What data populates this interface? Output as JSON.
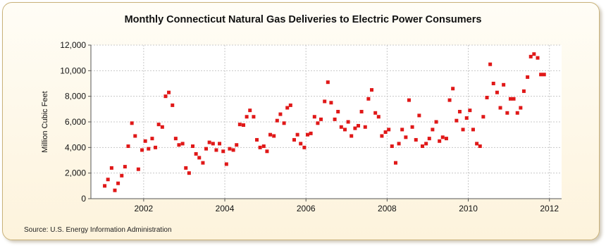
{
  "title": "Monthly Connecticut Natural Gas Deliveries to Electric Power Consumers",
  "source": "Source: U.S. Energy Information Administration",
  "chart_data": {
    "type": "scatter",
    "title": "Monthly Connecticut Natural Gas Deliveries to Electric Power Consumers",
    "xlabel": "",
    "ylabel": "Million Cubic Feet",
    "xlim": [
      2000.7,
      2012.3
    ],
    "ylim": [
      0,
      12000
    ],
    "x_ticks": [
      2002,
      2004,
      2006,
      2008,
      2010,
      2012
    ],
    "x_tick_labels": [
      "2002",
      "2004",
      "2006",
      "2008",
      "2010",
      "2012"
    ],
    "y_ticks": [
      0,
      2000,
      4000,
      6000,
      8000,
      10000,
      12000
    ],
    "y_tick_labels": [
      "0",
      "2,000",
      "4,000",
      "6,000",
      "8,000",
      "10,000",
      "12,000"
    ],
    "grid": true,
    "marker_color": "#e01818",
    "series": [
      {
        "x": [
          2001.04,
          2001.12,
          2001.21,
          2001.29,
          2001.37,
          2001.46,
          2001.54,
          2001.62,
          2001.71,
          2001.79,
          2001.87,
          2001.96,
          2002.04,
          2002.12,
          2002.21,
          2002.29,
          2002.37,
          2002.46,
          2002.54,
          2002.62,
          2002.71,
          2002.79,
          2002.87,
          2002.96,
          2003.04,
          2003.12,
          2003.21,
          2003.29,
          2003.37,
          2003.46,
          2003.54,
          2003.62,
          2003.71,
          2003.79,
          2003.87,
          2003.96,
          2004.04,
          2004.12,
          2004.21,
          2004.29,
          2004.37,
          2004.46,
          2004.54,
          2004.62,
          2004.71,
          2004.79,
          2004.87,
          2004.96,
          2005.04,
          2005.12,
          2005.21,
          2005.29,
          2005.37,
          2005.46,
          2005.54,
          2005.62,
          2005.71,
          2005.79,
          2005.87,
          2005.96,
          2006.04,
          2006.12,
          2006.21,
          2006.29,
          2006.37,
          2006.46,
          2006.54,
          2006.62,
          2006.71,
          2006.79,
          2006.87,
          2006.96,
          2007.04,
          2007.12,
          2007.21,
          2007.29,
          2007.37,
          2007.46,
          2007.54,
          2007.62,
          2007.71,
          2007.79,
          2007.87,
          2007.96,
          2008.04,
          2008.12,
          2008.21,
          2008.29,
          2008.37,
          2008.46,
          2008.54,
          2008.62,
          2008.71,
          2008.79,
          2008.87,
          2008.96,
          2009.04,
          2009.12,
          2009.21,
          2009.29,
          2009.37,
          2009.46,
          2009.54,
          2009.62,
          2009.71,
          2009.79,
          2009.87,
          2009.96,
          2010.04,
          2010.12,
          2010.21,
          2010.29,
          2010.37,
          2010.46,
          2010.54,
          2010.62,
          2010.71,
          2010.79,
          2010.87,
          2010.96,
          2011.04,
          2011.12,
          2011.21,
          2011.29,
          2011.37,
          2011.46,
          2011.54,
          2011.62,
          2011.71,
          2011.79,
          2011.87
        ],
        "y": [
          1000,
          1500,
          2400,
          650,
          1200,
          1800,
          2500,
          4100,
          5900,
          4900,
          2300,
          3800,
          4500,
          3900,
          4700,
          4000,
          5800,
          5600,
          8000,
          8300,
          7300,
          4700,
          4200,
          4300,
          2400,
          2000,
          4100,
          3500,
          3200,
          2800,
          3900,
          4400,
          4300,
          3800,
          4300,
          3700,
          2700,
          3900,
          3800,
          4200,
          5800,
          5750,
          6400,
          6900,
          6400,
          4600,
          4000,
          4100,
          3700,
          5000,
          4900,
          6100,
          6600,
          5900,
          7100,
          7300,
          4600,
          5000,
          4300,
          4000,
          5000,
          5100,
          6400,
          5900,
          6200,
          7600,
          9100,
          7500,
          6200,
          6800,
          5600,
          5400,
          6000,
          4900,
          5500,
          5700,
          6800,
          5600,
          7800,
          8500,
          6700,
          6400,
          4900,
          5200,
          5400,
          4100,
          2800,
          4300,
          5400,
          4800,
          7700,
          5600,
          4600,
          6500,
          4100,
          4300,
          4700,
          5400,
          6000,
          4500,
          4800,
          4700,
          7700,
          8600,
          6100,
          6800,
          5400,
          6300,
          6900,
          5400,
          4300,
          4100,
          6400,
          7900,
          10500,
          9000,
          8300,
          7100,
          8900,
          6700,
          7800,
          7800,
          6700,
          7100,
          8400,
          9500,
          11100,
          11300,
          11000,
          9700,
          9700
        ]
      }
    ]
  }
}
